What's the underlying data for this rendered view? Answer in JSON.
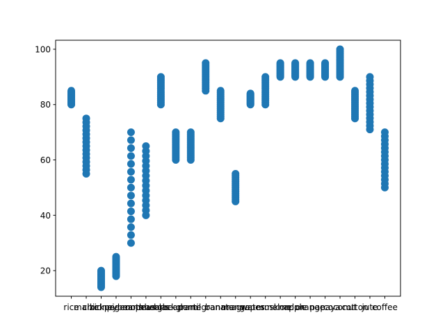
{
  "chart_data": {
    "type": "scatter",
    "title": "",
    "xlabel": "",
    "ylabel": "",
    "categories": [
      "rice",
      "maize",
      "chickpea",
      "kidneybeans",
      "pigeonpeas",
      "mothbeans",
      "mungbean",
      "blackgram",
      "lentil",
      "pomegranate",
      "banana",
      "mango",
      "grapes",
      "watermelon",
      "muskmelon",
      "apple",
      "orange",
      "papaya",
      "coconut",
      "cotton",
      "jute",
      "coffee"
    ],
    "ylim": [
      10.75,
      103.25
    ],
    "yticks": [
      20,
      40,
      60,
      80,
      100
    ],
    "grid": false,
    "marker_color": "#1f77b4",
    "ranges": [
      {
        "category": "rice",
        "min": 80,
        "max": 85
      },
      {
        "category": "maize",
        "min": 55,
        "max": 75
      },
      {
        "category": "chickpea",
        "min": 14,
        "max": 20
      },
      {
        "category": "kidneybeans",
        "min": 18,
        "max": 25
      },
      {
        "category": "pigeonpeas",
        "min": 30,
        "max": 70
      },
      {
        "category": "mothbeans",
        "min": 40,
        "max": 65
      },
      {
        "category": "mungbean",
        "min": 80,
        "max": 90
      },
      {
        "category": "blackgram",
        "min": 60,
        "max": 70
      },
      {
        "category": "lentil",
        "min": 60,
        "max": 70
      },
      {
        "category": "pomegranate",
        "min": 85,
        "max": 95
      },
      {
        "category": "banana",
        "min": 75,
        "max": 85
      },
      {
        "category": "mango",
        "min": 45,
        "max": 55
      },
      {
        "category": "grapes",
        "min": 80,
        "max": 84
      },
      {
        "category": "watermelon",
        "min": 80,
        "max": 90
      },
      {
        "category": "muskmelon",
        "min": 90,
        "max": 95
      },
      {
        "category": "apple",
        "min": 90,
        "max": 95
      },
      {
        "category": "orange",
        "min": 90,
        "max": 95
      },
      {
        "category": "papaya",
        "min": 90,
        "max": 95
      },
      {
        "category": "coconut",
        "min": 90,
        "max": 100
      },
      {
        "category": "cotton",
        "min": 75,
        "max": 85
      },
      {
        "category": "jute",
        "min": 71,
        "max": 90
      },
      {
        "category": "coffee",
        "min": 50,
        "max": 70
      }
    ]
  }
}
